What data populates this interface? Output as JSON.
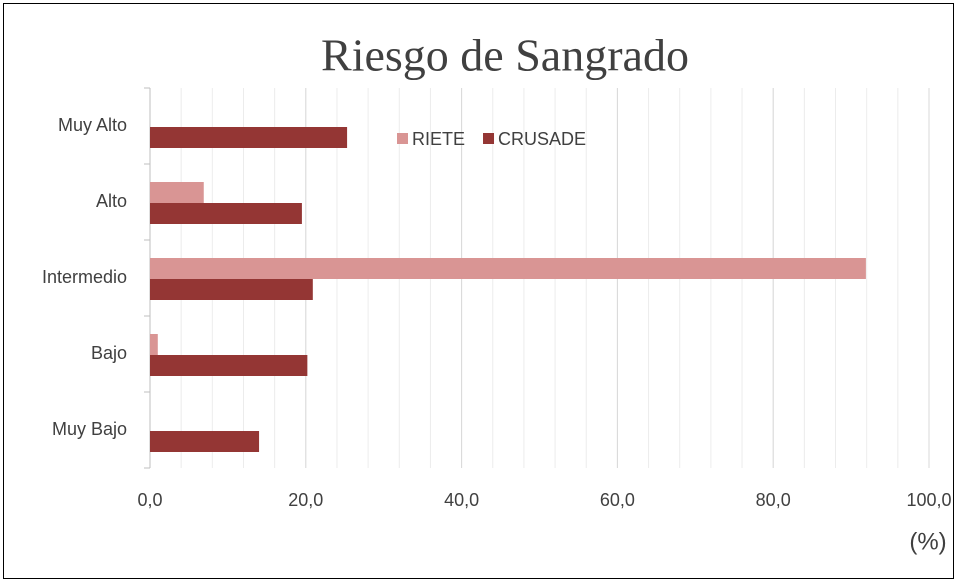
{
  "chart_data": {
    "type": "hbar",
    "title": "Riesgo de Sangrado",
    "categories": [
      "Muy Alto",
      "Alto",
      "Intermedio",
      "Bajo",
      "Muy Bajo"
    ],
    "series": [
      {
        "name": "RIETE",
        "color": "#d99594",
        "values": [
          0,
          6.9,
          91.9,
          1.0,
          0
        ]
      },
      {
        "name": "CRUSADE",
        "color": "#943634",
        "values": [
          25.3,
          19.5,
          20.9,
          20.2,
          14.0
        ]
      }
    ],
    "xlim": [
      0,
      100
    ],
    "xticks": [
      {
        "value": 0,
        "label": "0,0"
      },
      {
        "value": 20,
        "label": "20,0"
      },
      {
        "value": 40,
        "label": "40,0"
      },
      {
        "value": 60,
        "label": "60,0"
      },
      {
        "value": 80,
        "label": "80,0"
      },
      {
        "value": 100,
        "label": "100,0"
      }
    ],
    "minor_grid_step": 4,
    "x_label": "(%)",
    "grid": true,
    "legend": "top"
  }
}
